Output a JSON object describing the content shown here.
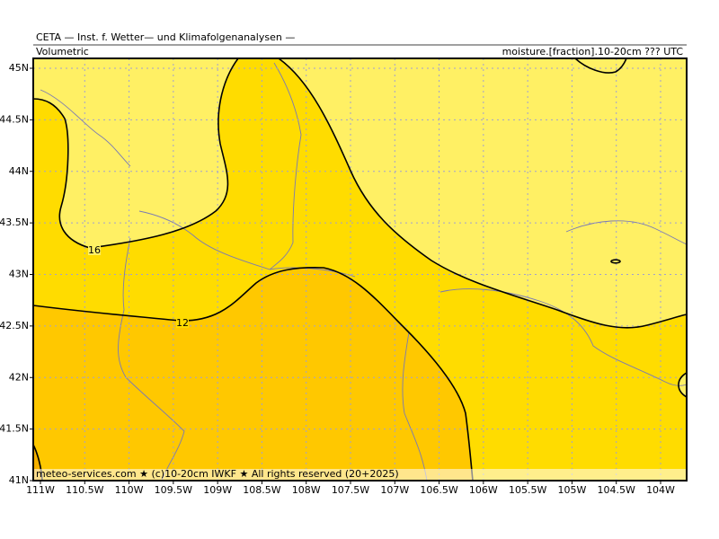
{
  "header": {
    "title": "CETA — Inst. f. Wetter— und Klimafolgenanalysen —",
    "subtitle": "Volumetric",
    "field": "moisture.[fraction].10-20cm ??? UTC"
  },
  "latitude_labels": [
    "45N",
    "44.5N",
    "44N",
    "43.5N",
    "43N",
    "42.5N",
    "42N",
    "41.5N",
    "41N"
  ],
  "longitude_labels": [
    "111W",
    "110.5W",
    "110W",
    "109.5W",
    "109W",
    "108.5W",
    "108W",
    "107.5W",
    "107W",
    "106.5W",
    "106W",
    "105.5W",
    "105W",
    "104.5W",
    "104W"
  ],
  "contour_labels": [
    "16",
    "12"
  ],
  "footer": "meteo-services.com ★ (c)10-20cm IWKF ★ All rights reserved (20+2025)"
}
